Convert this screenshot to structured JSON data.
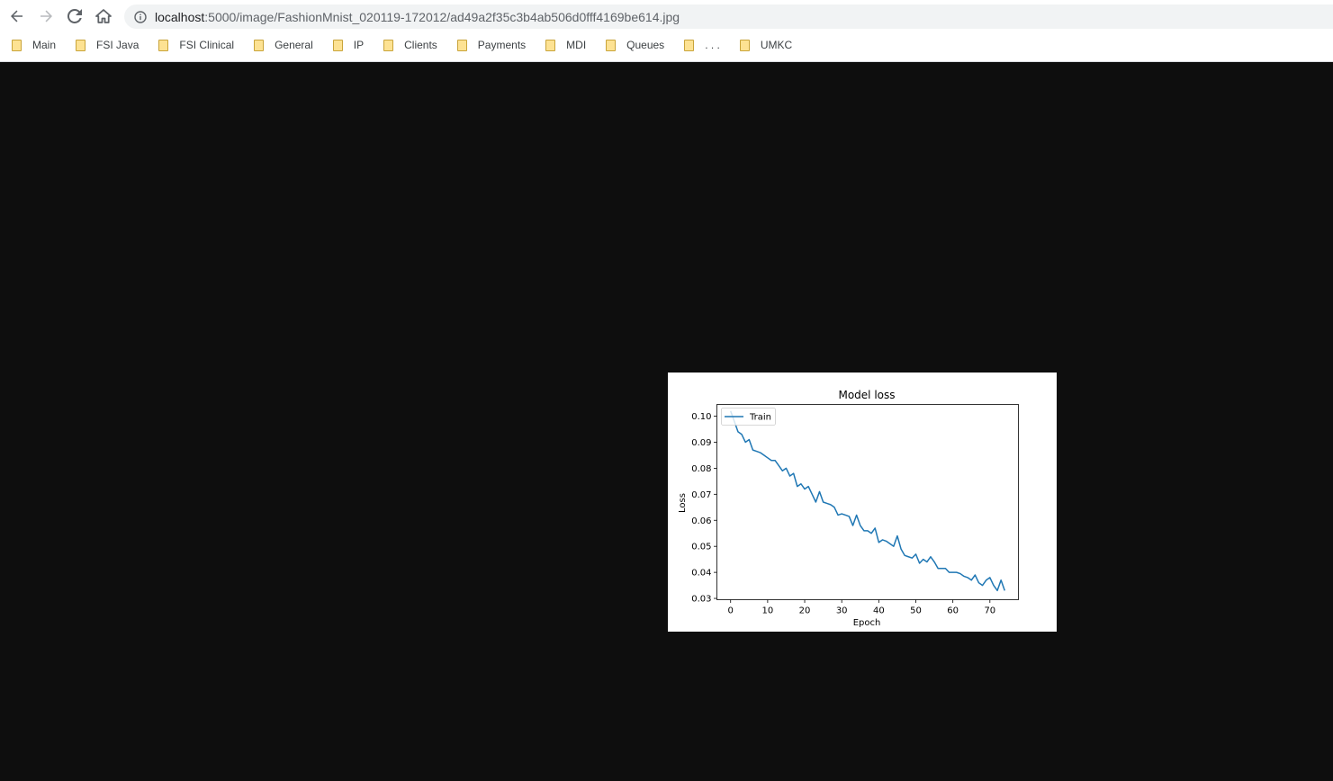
{
  "browser": {
    "url_host": "localhost",
    "url_path": ":5000/image/FashionMnist_020119-172012/ad49a2f35c3b4ab506d0fff4169be614.jpg"
  },
  "bookmarks": [
    {
      "label": "Main"
    },
    {
      "label": "FSI Java"
    },
    {
      "label": "FSI Clinical"
    },
    {
      "label": "General"
    },
    {
      "label": "IP"
    },
    {
      "label": "Clients"
    },
    {
      "label": "Payments"
    },
    {
      "label": "MDI"
    },
    {
      "label": "Queues"
    },
    {
      "label": ". . ."
    },
    {
      "label": "UMKC"
    }
  ],
  "icons": [
    "back-arrow-icon",
    "forward-arrow-icon",
    "reload-icon",
    "home-icon",
    "info-icon",
    "folder-icon"
  ],
  "chart_data": {
    "type": "line",
    "title": "Model loss",
    "xlabel": "Epoch",
    "ylabel": "Loss",
    "xlim": [
      -3.7,
      77.7
    ],
    "ylim": [
      0.0295,
      0.1045
    ],
    "xticks": [
      0,
      10,
      20,
      30,
      40,
      50,
      60,
      70
    ],
    "yticks": [
      0.03,
      0.04,
      0.05,
      0.06,
      0.07,
      0.08,
      0.09,
      0.1
    ],
    "ytick_labels": [
      "0.03",
      "0.04",
      "0.05",
      "0.06",
      "0.07",
      "0.08",
      "0.09",
      "0.10"
    ],
    "legend_location": "upper left",
    "grid": false,
    "color": "#1f77b4",
    "series": [
      {
        "name": "Train",
        "x": [
          0,
          1,
          2,
          3,
          4,
          5,
          6,
          7,
          8,
          9,
          10,
          11,
          12,
          13,
          14,
          15,
          16,
          17,
          18,
          19,
          20,
          21,
          22,
          23,
          24,
          25,
          26,
          27,
          28,
          29,
          30,
          31,
          32,
          33,
          34,
          35,
          36,
          37,
          38,
          39,
          40,
          41,
          42,
          43,
          44,
          45,
          46,
          47,
          48,
          49,
          50,
          51,
          52,
          53,
          54,
          55,
          56,
          57,
          58,
          59,
          60,
          61,
          62,
          63,
          64,
          65,
          66,
          67,
          68,
          69,
          70,
          71,
          72,
          73,
          74
        ],
        "values": [
          0.102,
          0.098,
          0.094,
          0.093,
          0.09,
          0.091,
          0.087,
          0.0865,
          0.086,
          0.085,
          0.084,
          0.083,
          0.083,
          0.081,
          0.079,
          0.08,
          0.077,
          0.078,
          0.073,
          0.074,
          0.072,
          0.073,
          0.07,
          0.067,
          0.071,
          0.067,
          0.0665,
          0.066,
          0.065,
          0.062,
          0.0625,
          0.062,
          0.0615,
          0.058,
          0.062,
          0.058,
          0.056,
          0.056,
          0.055,
          0.057,
          0.0515,
          0.0525,
          0.052,
          0.051,
          0.05,
          0.054,
          0.049,
          0.0465,
          0.046,
          0.0455,
          0.047,
          0.0435,
          0.045,
          0.044,
          0.046,
          0.044,
          0.0415,
          0.0415,
          0.0415,
          0.04,
          0.04,
          0.04,
          0.0395,
          0.0385,
          0.038,
          0.037,
          0.039,
          0.036,
          0.035,
          0.037,
          0.038,
          0.035,
          0.033,
          0.037,
          0.033
        ]
      }
    ]
  }
}
